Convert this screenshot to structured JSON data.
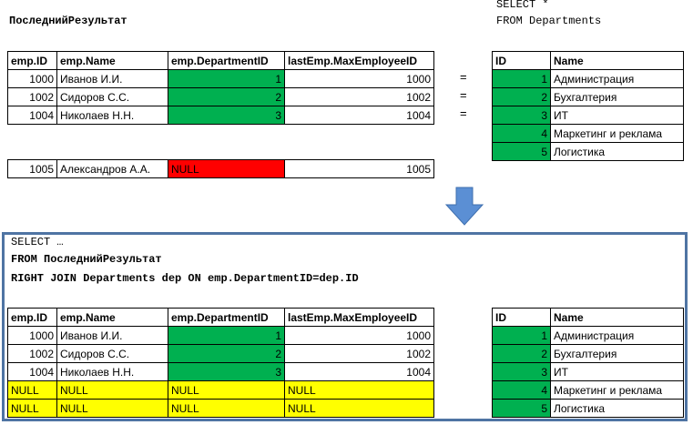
{
  "top": {
    "result_label": "ПоследнийРезультат",
    "select_star": "SELECT *",
    "from_departments": "FROM Departments",
    "emp_table": {
      "headers": [
        "emp.ID",
        "emp.Name",
        "emp.DepartmentID",
        "lastEmp.MaxEmployeeID"
      ],
      "rows": [
        [
          "1000",
          "Иванов И.И.",
          "1",
          "1000"
        ],
        [
          "1002",
          "Сидоров С.С.",
          "2",
          "1002"
        ],
        [
          "1004",
          "Николаев Н.Н.",
          "3",
          "1004"
        ]
      ]
    },
    "equals": [
      "=",
      "=",
      "="
    ],
    "extra_row": [
      "1005",
      "Александров А.А.",
      "NULL",
      "1005"
    ],
    "dept_table": {
      "headers": [
        "ID",
        "Name"
      ],
      "rows": [
        [
          "1",
          "Администрация"
        ],
        [
          "2",
          "Бухгалтерия"
        ],
        [
          "3",
          "ИТ"
        ],
        [
          "4",
          "Маркетинг и реклама"
        ],
        [
          "5",
          "Логистика"
        ]
      ]
    }
  },
  "bottom": {
    "sql_line1": "SELECT …",
    "sql_line2": "FROM ПоследнийРезультат",
    "sql_line3": "RIGHT JOIN Departments dep ON emp.DepartmentID=dep.ID",
    "emp_table": {
      "headers": [
        "emp.ID",
        "emp.Name",
        "emp.DepartmentID",
        "lastEmp.MaxEmployeeID"
      ],
      "rows": [
        [
          "1000",
          "Иванов И.И.",
          "1",
          "1000"
        ],
        [
          "1002",
          "Сидоров С.С.",
          "2",
          "1002"
        ],
        [
          "1004",
          "Николаев Н.Н.",
          "3",
          "1004"
        ],
        [
          "NULL",
          "NULL",
          "NULL",
          "NULL"
        ],
        [
          "NULL",
          "NULL",
          "NULL",
          "NULL"
        ]
      ]
    },
    "dept_table": {
      "headers": [
        "ID",
        "Name"
      ],
      "rows": [
        [
          "1",
          "Администрация"
        ],
        [
          "2",
          "Бухгалтерия"
        ],
        [
          "3",
          "ИТ"
        ],
        [
          "4",
          "Маркетинг и реклама"
        ],
        [
          "5",
          "Логистика"
        ]
      ]
    }
  },
  "colors": {
    "match": "#00b050",
    "null_unmatched": "#ff0000",
    "null_joined": "#ffff00",
    "panel_border": "#4f74a3",
    "arrow": "#5b8fd4"
  }
}
